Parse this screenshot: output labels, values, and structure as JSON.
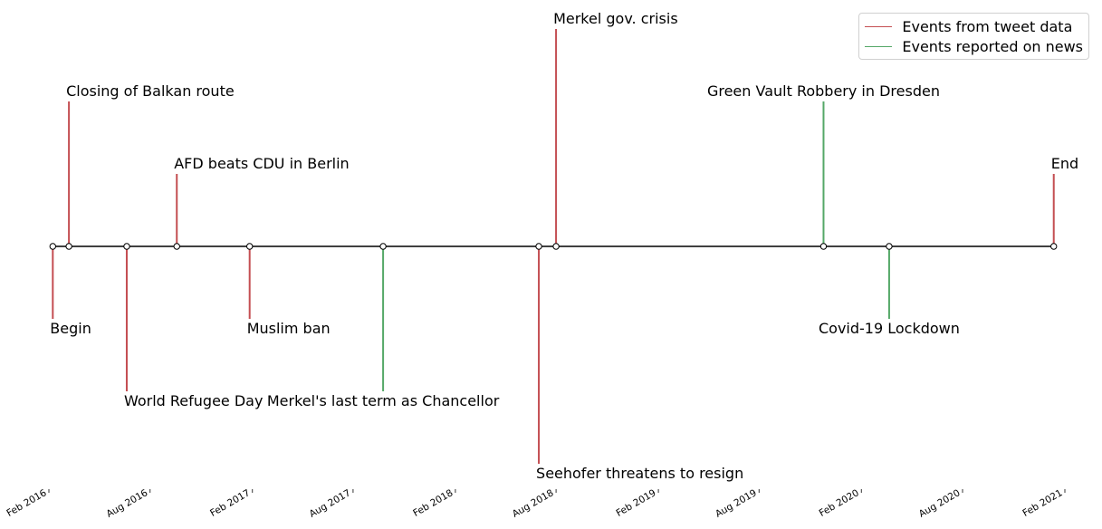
{
  "chart_data": {
    "type": "timeline",
    "title": "",
    "xlabel": "",
    "ylabel": "",
    "x_axis": {
      "kind": "date",
      "range": [
        "2016-02-01",
        "2021-02-01"
      ],
      "ticks": [
        {
          "date": "2016-02-01",
          "label": "Feb 2016"
        },
        {
          "date": "2016-08-01",
          "label": "Aug 2016"
        },
        {
          "date": "2017-02-01",
          "label": "Feb 2017"
        },
        {
          "date": "2017-08-01",
          "label": "Aug 2017"
        },
        {
          "date": "2018-02-01",
          "label": "Feb 2018"
        },
        {
          "date": "2018-08-01",
          "label": "Aug 2018"
        },
        {
          "date": "2019-02-01",
          "label": "Feb 2019"
        },
        {
          "date": "2019-08-01",
          "label": "Aug 2019"
        },
        {
          "date": "2020-02-01",
          "label": "Feb 2020"
        },
        {
          "date": "2020-08-01",
          "label": "Aug 2020"
        },
        {
          "date": "2021-02-01",
          "label": "Feb 2021"
        }
      ]
    },
    "y_range": [
      -3,
      3
    ],
    "grid": false,
    "legend_position": "top-right",
    "legend": [
      {
        "label": "Events from tweet data",
        "color": "#c44e52"
      },
      {
        "label": "Events reported on news",
        "color": "#55a868"
      }
    ],
    "events": [
      {
        "date": "2016-02-08",
        "label": "Begin",
        "level": -1,
        "source": "tweet"
      },
      {
        "date": "2016-03-08",
        "label": "Closing of Balkan route",
        "level": 2,
        "source": "tweet"
      },
      {
        "date": "2016-06-20",
        "label": "World Refugee Day",
        "level": -2,
        "source": "tweet"
      },
      {
        "date": "2016-09-18",
        "label": "AFD beats CDU in Berlin",
        "level": 1,
        "source": "tweet"
      },
      {
        "date": "2017-01-27",
        "label": "Muslim ban",
        "level": -1,
        "source": "tweet"
      },
      {
        "date": "2017-09-24",
        "label": "Merkel's last term as Chancellor",
        "level": -2,
        "source": "news"
      },
      {
        "date": "2018-07-01",
        "label": "Seehofer threatens to resign",
        "level": -3,
        "source": "tweet"
      },
      {
        "date": "2018-08-01",
        "label": "Merkel gov. crisis",
        "level": 3,
        "source": "tweet"
      },
      {
        "date": "2019-11-25",
        "label": "Green Vault Robbery in Dresden",
        "level": 2,
        "source": "news"
      },
      {
        "date": "2020-03-22",
        "label": "Covid-19 Lockdown",
        "level": -1,
        "source": "news"
      },
      {
        "date": "2021-01-12",
        "label": "End",
        "level": 1,
        "source": "tweet"
      }
    ]
  },
  "colors": {
    "tweet": "#c44e52",
    "news": "#55a868",
    "axis": "#000000"
  }
}
